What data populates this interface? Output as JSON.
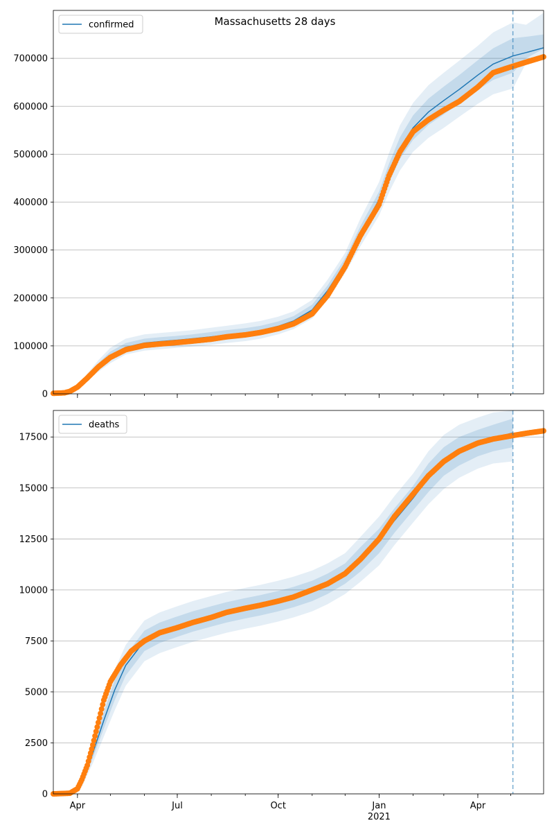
{
  "figure": {
    "title": "Massachusetts 28 days"
  },
  "chart_data": [
    {
      "type": "line",
      "id": "confirmed",
      "legend": "confirmed",
      "legend_position": "upper-left",
      "grid": "horizontal",
      "ylim": [
        0,
        800000
      ],
      "yticks": [
        0,
        100000,
        200000,
        300000,
        400000,
        500000,
        600000,
        700000
      ],
      "ytick_labels": [
        "0",
        "100000",
        "200000",
        "300000",
        "400000",
        "500000",
        "600000",
        "700000"
      ],
      "xlim": [
        "2020-03-10",
        "2021-05-31"
      ],
      "forecast_start": "2021-05-03",
      "model_series": {
        "name": "confirmed",
        "color": "#1f77b4",
        "x": [
          "2020-03-10",
          "2020-03-20",
          "2020-04-01",
          "2020-04-10",
          "2020-04-20",
          "2020-05-01",
          "2020-05-15",
          "2020-06-01",
          "2020-06-15",
          "2020-07-01",
          "2020-07-15",
          "2020-08-01",
          "2020-08-15",
          "2020-09-01",
          "2020-09-15",
          "2020-10-01",
          "2020-10-15",
          "2020-11-01",
          "2020-11-15",
          "2020-12-01",
          "2020-12-15",
          "2021-01-01",
          "2021-01-10",
          "2021-01-20",
          "2021-02-01",
          "2021-02-15",
          "2021-03-01",
          "2021-03-15",
          "2021-04-01",
          "2021-04-15",
          "2021-05-03",
          "2021-05-15",
          "2021-05-31"
        ],
        "y": [
          0,
          1000,
          15000,
          35000,
          58000,
          80000,
          97000,
          106000,
          109000,
          112000,
          115000,
          119000,
          123000,
          127000,
          132000,
          141000,
          152000,
          175000,
          215000,
          272000,
          335000,
          405000,
          460000,
          512000,
          555000,
          588000,
          612000,
          635000,
          665000,
          688000,
          705000,
          712000,
          722000
        ],
        "bands": [
          {
            "level": "inner",
            "lower": [
              0,
              800,
              13500,
              31500,
              52000,
              72000,
              89000,
              97000,
              100000,
              103000,
              106000,
              109000,
              113000,
              117000,
              122000,
              131000,
              142000,
              165000,
              205000,
              262000,
              322000,
              390000,
              440000,
              490000,
              530000,
              561000,
              583000,
              606000,
              634000,
              655000,
              670000,
              700000,
              720000
            ],
            "upper": [
              0,
              1200,
              16500,
              38500,
              64000,
              88000,
              106000,
              115000,
              118000,
              121000,
              124000,
              129000,
              133000,
              137000,
              142000,
              151000,
              162000,
              186000,
              226000,
              283000,
              350000,
              422000,
              480000,
              535000,
              581000,
              616000,
              641000,
              665000,
              696000,
              721000,
              742000,
              745000,
              750000
            ]
          },
          {
            "level": "outer",
            "lower": [
              0,
              500,
              12000,
              28000,
              46000,
              64000,
              82000,
              90000,
              93000,
              96000,
              99000,
              102000,
              106000,
              110000,
              115000,
              124000,
              135000,
              157000,
              196000,
              252000,
              308000,
              372000,
              420000,
              466000,
              505000,
              534000,
              555000,
              578000,
              605000,
              625000,
              637000,
              690000,
              703000
            ],
            "upper": [
              0,
              1500,
              18000,
              42000,
              70000,
              96000,
              115000,
              124000,
              127000,
              130000,
              133000,
              138000,
              142000,
              147000,
              152000,
              161000,
              172000,
              196000,
              238000,
              294000,
              366000,
              442000,
              502000,
              560000,
              607000,
              644000,
              670000,
              695000,
              726000,
              754000,
              775000,
              770000,
              795000
            ]
          }
        ]
      },
      "observed_series": {
        "color": "#ff7f0e",
        "x": [
          "2020-03-10",
          "2020-03-20",
          "2020-03-25",
          "2020-04-01",
          "2020-04-10",
          "2020-04-20",
          "2020-05-01",
          "2020-05-15",
          "2020-06-01",
          "2020-06-15",
          "2020-07-01",
          "2020-07-15",
          "2020-08-01",
          "2020-08-15",
          "2020-09-01",
          "2020-09-15",
          "2020-10-01",
          "2020-10-15",
          "2020-11-01",
          "2020-11-15",
          "2020-12-01",
          "2020-12-15",
          "2021-01-01",
          "2021-01-10",
          "2021-01-20",
          "2021-02-01",
          "2021-02-15",
          "2021-03-01",
          "2021-03-15",
          "2021-04-01",
          "2021-04-15",
          "2021-05-01",
          "2021-05-15",
          "2021-05-31"
        ],
        "y": [
          1000,
          2000,
          5000,
          14000,
          33000,
          56000,
          76000,
          92000,
          101000,
          104000,
          107000,
          110000,
          114000,
          119000,
          123000,
          128000,
          136000,
          146000,
          167000,
          205000,
          265000,
          330000,
          395000,
          455000,
          505000,
          547000,
          572000,
          592000,
          610000,
          640000,
          670000,
          682000,
          692000,
          703000
        ]
      }
    },
    {
      "type": "line",
      "id": "deaths",
      "legend": "deaths",
      "legend_position": "upper-left",
      "grid": "horizontal",
      "ylim": [
        0,
        18800
      ],
      "yticks": [
        0,
        2500,
        5000,
        7500,
        10000,
        12500,
        15000,
        17500
      ],
      "ytick_labels": [
        "0",
        "2500",
        "5000",
        "7500",
        "10000",
        "12500",
        "15000",
        "17500"
      ],
      "xlim": [
        "2020-03-10",
        "2021-05-31"
      ],
      "xticks": [
        "2020-04-01",
        "2020-07-01",
        "2020-10-01",
        "2021-01-01",
        "2021-04-01"
      ],
      "xtick_labels": [
        "Apr",
        "Jul",
        "Oct",
        "Jan",
        "Apr"
      ],
      "xtick_sublabel": {
        "at": "2021-01-01",
        "text": "2021"
      },
      "forecast_start": "2021-05-03",
      "model_series": {
        "name": "deaths",
        "color": "#1f77b4",
        "x": [
          "2020-03-10",
          "2020-03-25",
          "2020-04-05",
          "2020-04-15",
          "2020-04-25",
          "2020-05-05",
          "2020-05-15",
          "2020-06-01",
          "2020-06-15",
          "2020-07-01",
          "2020-07-15",
          "2020-08-01",
          "2020-08-15",
          "2020-09-01",
          "2020-09-15",
          "2020-10-01",
          "2020-10-15",
          "2020-11-01",
          "2020-11-15",
          "2020-12-01",
          "2020-12-15",
          "2021-01-01",
          "2021-01-15",
          "2021-02-01",
          "2021-02-15",
          "2021-03-01",
          "2021-03-15",
          "2021-04-01",
          "2021-04-15",
          "2021-05-03"
        ],
        "y": [
          0,
          30,
          500,
          2000,
          3600,
          5100,
          6300,
          7500,
          7900,
          8200,
          8450,
          8700,
          8900,
          9100,
          9250,
          9450,
          9650,
          9950,
          10300,
          10800,
          11500,
          12400,
          13400,
          14500,
          15500,
          16300,
          16800,
          17200,
          17450,
          17700
        ],
        "bands": [
          {
            "level": "inner",
            "lower": [
              0,
              25,
              420,
              1750,
              3200,
              4600,
              5800,
              7000,
              7400,
              7700,
              7950,
              8200,
              8400,
              8600,
              8750,
              8950,
              9150,
              9450,
              9800,
              10300,
              10900,
              11800,
              12800,
              13900,
              14800,
              15600,
              16100,
              16550,
              16800,
              17000
            ],
            "upper": [
              0,
              35,
              580,
              2250,
              4000,
              5600,
              6800,
              8000,
              8400,
              8700,
              8950,
              9200,
              9400,
              9600,
              9750,
              9950,
              10150,
              10450,
              10800,
              11300,
              12100,
              13000,
              14000,
              15100,
              16200,
              17000,
              17500,
              17850,
              18100,
              18400
            ]
          },
          {
            "level": "outer",
            "lower": [
              0,
              20,
              350,
              1500,
              2800,
              4100,
              5300,
              6500,
              6900,
              7200,
              7450,
              7700,
              7900,
              8100,
              8250,
              8450,
              8650,
              8950,
              9300,
              9800,
              10400,
              11200,
              12200,
              13300,
              14200,
              14950,
              15500,
              15950,
              16200,
              16300
            ],
            "upper": [
              0,
              40,
              650,
              2500,
              4400,
              6100,
              7300,
              8500,
              8900,
              9200,
              9450,
              9700,
              9900,
              10100,
              10250,
              10450,
              10650,
              10950,
              11300,
              11800,
              12600,
              13600,
              14600,
              15700,
              16800,
              17600,
              18100,
              18450,
              18700,
              18800
            ]
          }
        ]
      },
      "observed_series": {
        "color": "#ff7f0e",
        "x": [
          "2020-03-10",
          "2020-03-25",
          "2020-04-01",
          "2020-04-05",
          "2020-04-10",
          "2020-04-15",
          "2020-04-20",
          "2020-04-25",
          "2020-05-01",
          "2020-05-10",
          "2020-05-20",
          "2020-06-01",
          "2020-06-15",
          "2020-07-01",
          "2020-07-15",
          "2020-08-01",
          "2020-08-15",
          "2020-09-01",
          "2020-09-15",
          "2020-10-01",
          "2020-10-15",
          "2020-11-01",
          "2020-11-15",
          "2020-12-01",
          "2020-12-15",
          "2021-01-01",
          "2021-01-15",
          "2021-02-01",
          "2021-02-15",
          "2021-03-01",
          "2021-03-15",
          "2021-04-01",
          "2021-04-15",
          "2021-05-01",
          "2021-05-15",
          "2021-05-31"
        ],
        "y": [
          0,
          30,
          250,
          700,
          1400,
          2400,
          3500,
          4600,
          5500,
          6300,
          7000,
          7500,
          7900,
          8150,
          8400,
          8650,
          8900,
          9100,
          9250,
          9450,
          9650,
          10000,
          10300,
          10800,
          11500,
          12500,
          13600,
          14700,
          15600,
          16300,
          16800,
          17200,
          17400,
          17550,
          17680,
          17800
        ]
      }
    }
  ]
}
